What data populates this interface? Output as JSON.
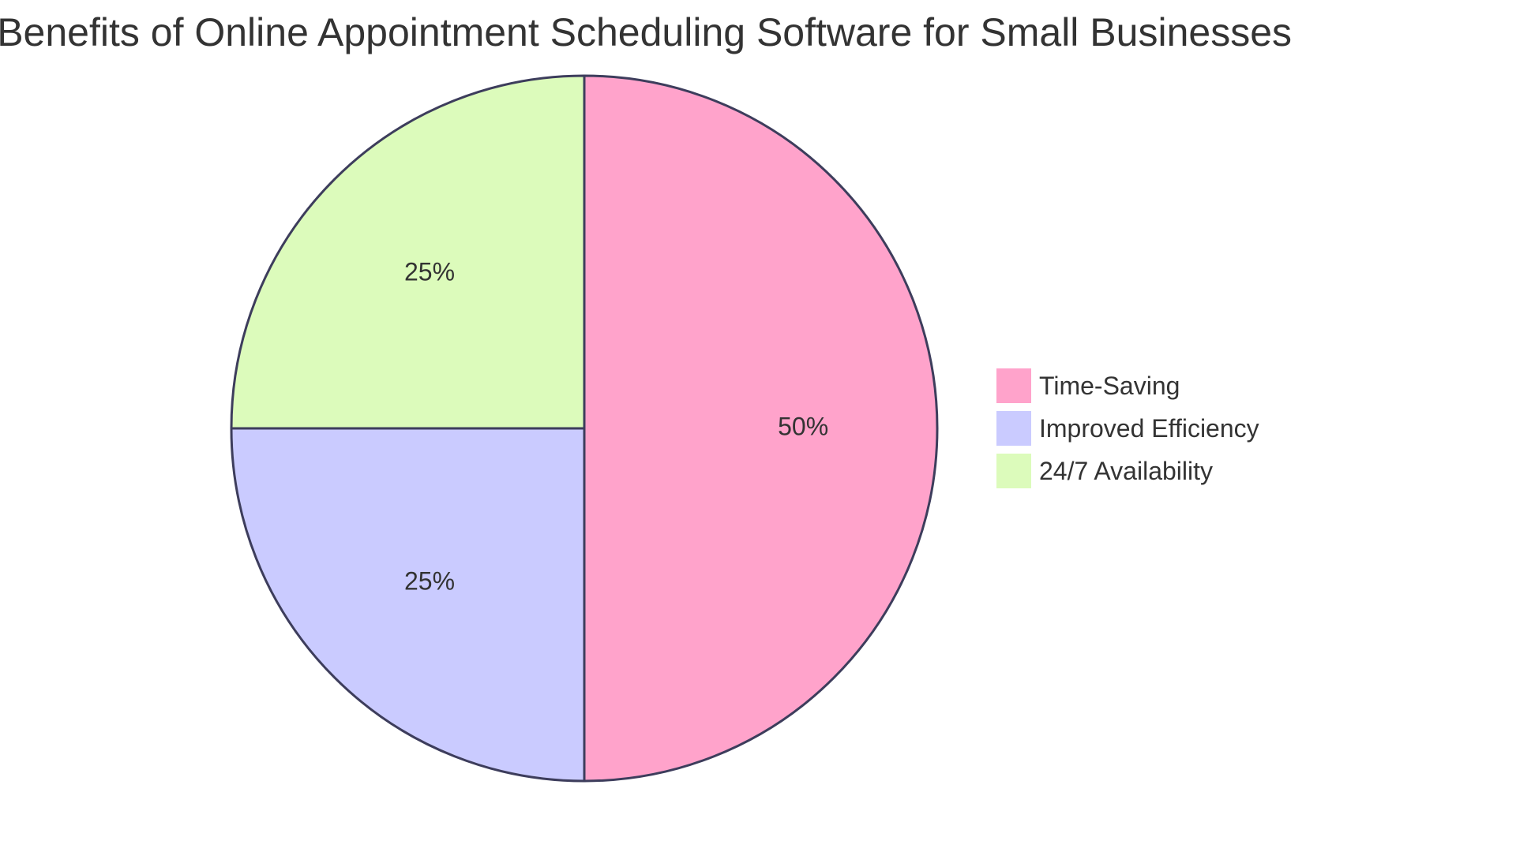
{
  "chart_data": {
    "type": "pie",
    "title": "Benefits of Online Appointment Scheduling Software for Small Businesses",
    "categories": [
      "Time-Saving",
      "Improved Efficiency",
      "24/7 Availability"
    ],
    "values": [
      50,
      25,
      25
    ],
    "value_labels": [
      "50%",
      "25%",
      "25%"
    ],
    "colors": [
      "#ffa3cb",
      "#cacbff",
      "#dcfbbb"
    ],
    "stroke_color": "#3d3d5c",
    "legend_position": "right"
  }
}
